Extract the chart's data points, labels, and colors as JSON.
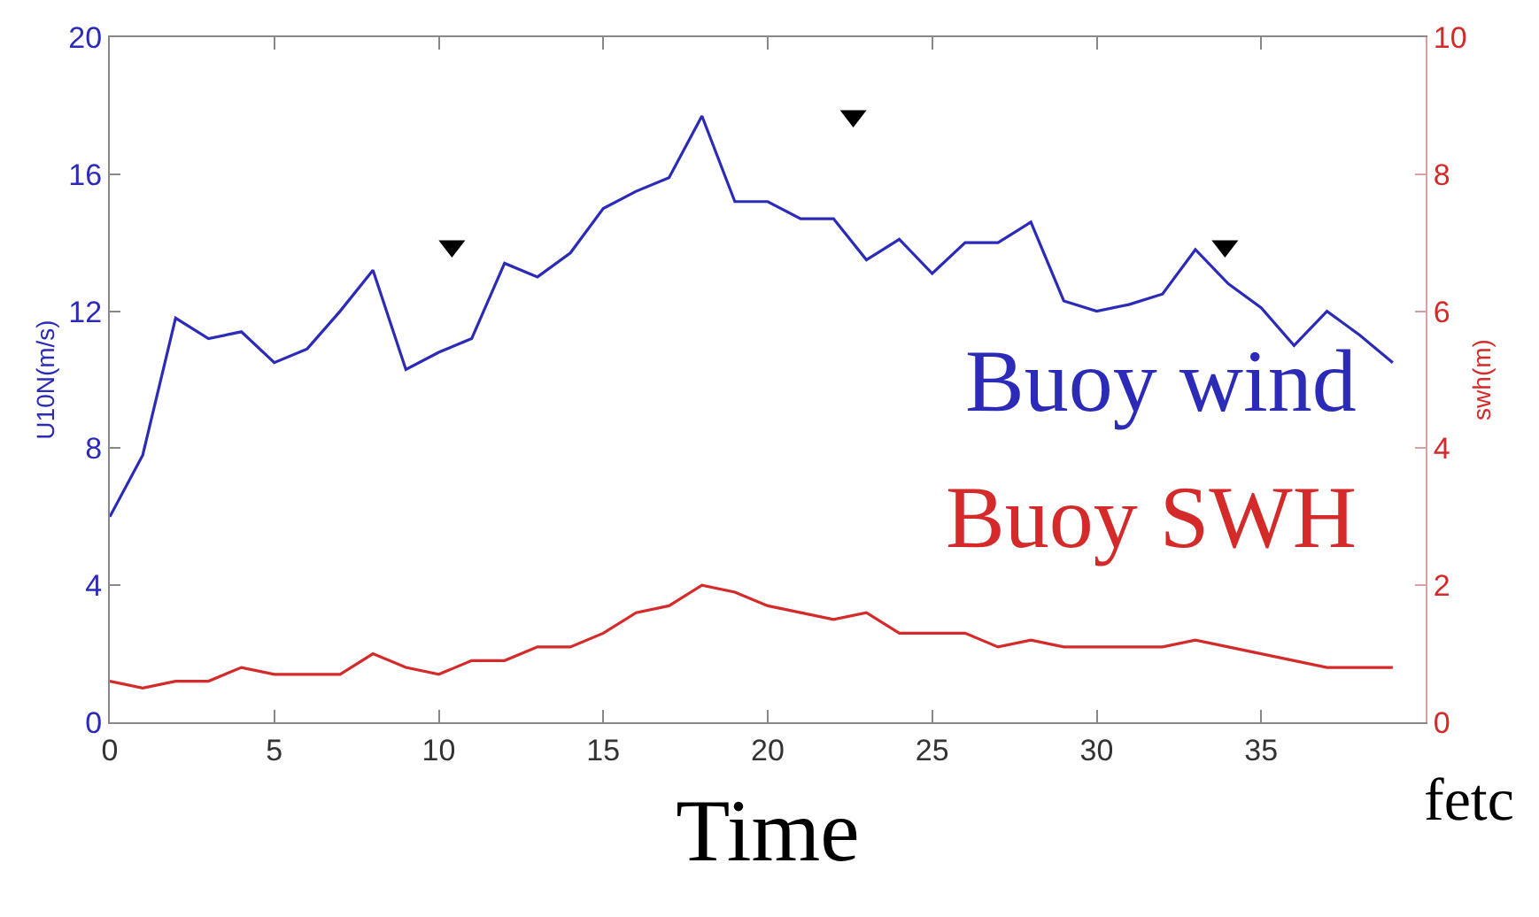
{
  "chart_data": {
    "type": "line",
    "xlabel": "Time",
    "ylabel": "U10N(m/s)",
    "y2label": "swh(m)",
    "x": [
      0,
      1,
      2,
      3,
      4,
      5,
      6,
      7,
      8,
      9,
      10,
      11,
      12,
      13,
      14,
      15,
      16,
      17,
      18,
      19,
      20,
      21,
      22,
      23,
      24,
      25,
      26,
      27,
      28,
      29,
      30,
      31,
      32,
      33,
      34,
      35,
      36,
      37,
      38,
      39
    ],
    "series": [
      {
        "name": "Buoy wind",
        "color": "#2b2bb8",
        "values": [
          6.0,
          7.8,
          11.8,
          11.2,
          11.4,
          10.5,
          10.9,
          12.0,
          13.2,
          10.3,
          10.8,
          11.2,
          13.4,
          13.0,
          13.7,
          15.0,
          15.5,
          15.9,
          17.7,
          15.2,
          15.2,
          14.7,
          14.7,
          13.5,
          14.1,
          13.1,
          14.0,
          14.0,
          14.6,
          12.3,
          12.0,
          12.2,
          12.5,
          13.8,
          12.8,
          12.1,
          11.0,
          12.0,
          11.3,
          10.5
        ]
      },
      {
        "name": "Buoy SWH",
        "color": "#d42a2a",
        "axis": "y2",
        "values": [
          0.6,
          0.5,
          0.6,
          0.6,
          0.8,
          0.7,
          0.7,
          0.7,
          1.0,
          0.8,
          0.7,
          0.9,
          0.9,
          1.1,
          1.1,
          1.3,
          1.6,
          1.7,
          2.0,
          1.9,
          1.7,
          1.6,
          1.5,
          1.6,
          1.3,
          1.3,
          1.3,
          1.1,
          1.2,
          1.1,
          1.1,
          1.1,
          1.1,
          1.2,
          1.1,
          1.0,
          0.9,
          0.8,
          0.8,
          0.8
        ]
      },
      {
        "type": "scatter",
        "marker": "triangle",
        "color": "#000000",
        "x": [
          10.4,
          22.6,
          33.9
        ],
        "values": [
          13.9,
          17.7,
          13.9
        ]
      }
    ],
    "xlim": [
      0,
      40
    ],
    "xticks": [
      0,
      5,
      10,
      15,
      20,
      25,
      30,
      35
    ],
    "ylim": [
      0,
      20
    ],
    "yticks": [
      0,
      4,
      8,
      12,
      16,
      20
    ],
    "y2lim": [
      0,
      10
    ],
    "y2ticks": [
      0,
      2,
      4,
      6,
      8,
      10
    ],
    "annotations": [
      "fetc"
    ]
  }
}
